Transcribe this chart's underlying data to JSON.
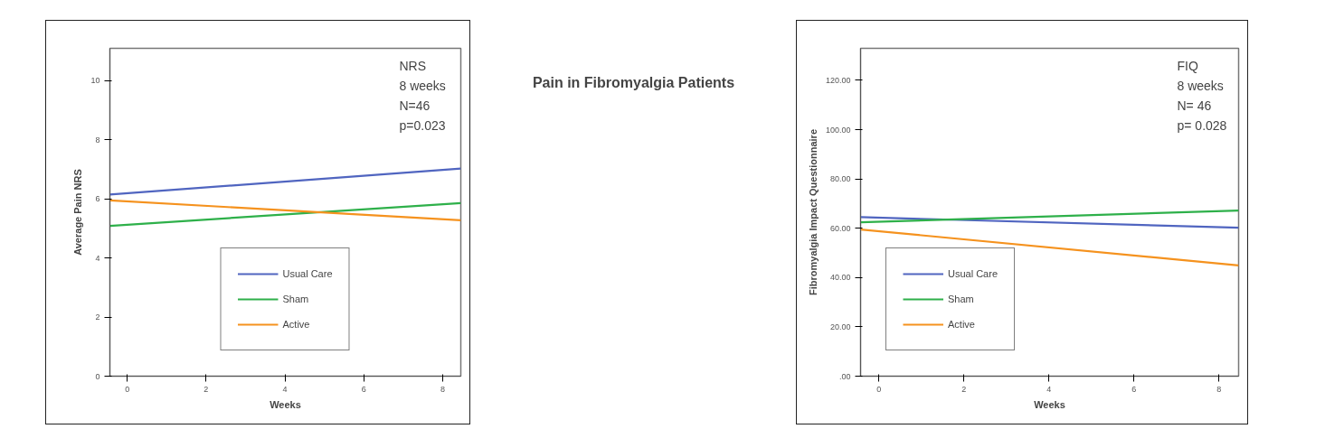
{
  "chart_data": [
    {
      "type": "line",
      "xlabel": "Weeks",
      "ylabel": "Average Pain NRS",
      "x": [
        -0.44,
        8.46
      ],
      "series": [
        {
          "name": "Usual Care",
          "color": "#5065c0",
          "values": [
            6.15,
            7.03
          ]
        },
        {
          "name": "Sham",
          "color": "#2eb04a",
          "values": [
            5.09,
            5.86
          ]
        },
        {
          "name": "Active",
          "color": "#f5921e",
          "values": [
            5.95,
            5.28
          ]
        }
      ],
      "xlim": [
        -0.44,
        8.46
      ],
      "ylim": [
        0,
        11.1
      ],
      "xticks": [
        0,
        2,
        4,
        6,
        8
      ],
      "yticks": [
        0,
        2,
        4,
        6,
        8,
        10
      ],
      "annotations": [
        "NRS",
        "8 weeks",
        "N=46",
        "p=0.023"
      ],
      "legend": "bottom",
      "grid": false,
      "marker": "none",
      "line_style": "solid"
    },
    {
      "type": "other",
      "title": "Pain in Fibromyalgia Patients"
    },
    {
      "type": "line",
      "xlabel": "Weeks",
      "ylabel": "Fibromyalgia Impact Questionnaire",
      "x": [
        -0.43,
        8.46
      ],
      "series": [
        {
          "name": "Usual Care",
          "color": "#5065c0",
          "values": [
            64.5,
            60.2
          ]
        },
        {
          "name": "Sham",
          "color": "#2eb04a",
          "values": [
            62.4,
            67.2
          ]
        },
        {
          "name": "Active",
          "color": "#f5921e",
          "values": [
            59.5,
            44.9
          ]
        }
      ],
      "xlim": [
        -0.43,
        8.46
      ],
      "ylim": [
        0,
        133
      ],
      "xticks": [
        0,
        2,
        4,
        6,
        8
      ],
      "yticks": [
        {
          "value": 0,
          "label": ".00"
        },
        {
          "value": 20,
          "label": "20.00"
        },
        {
          "value": 40,
          "label": "40.00"
        },
        {
          "value": 60,
          "label": "60.00"
        },
        {
          "value": 80,
          "label": "80.00"
        },
        {
          "value": 100,
          "label": "100.00"
        },
        {
          "value": 120,
          "label": "120.00"
        }
      ],
      "annotations": [
        "FIQ",
        "8 weeks",
        "N= 46",
        "p= 0.028"
      ],
      "legend": "bottom left",
      "grid": false,
      "marker": "none",
      "line_style": "solid"
    }
  ]
}
